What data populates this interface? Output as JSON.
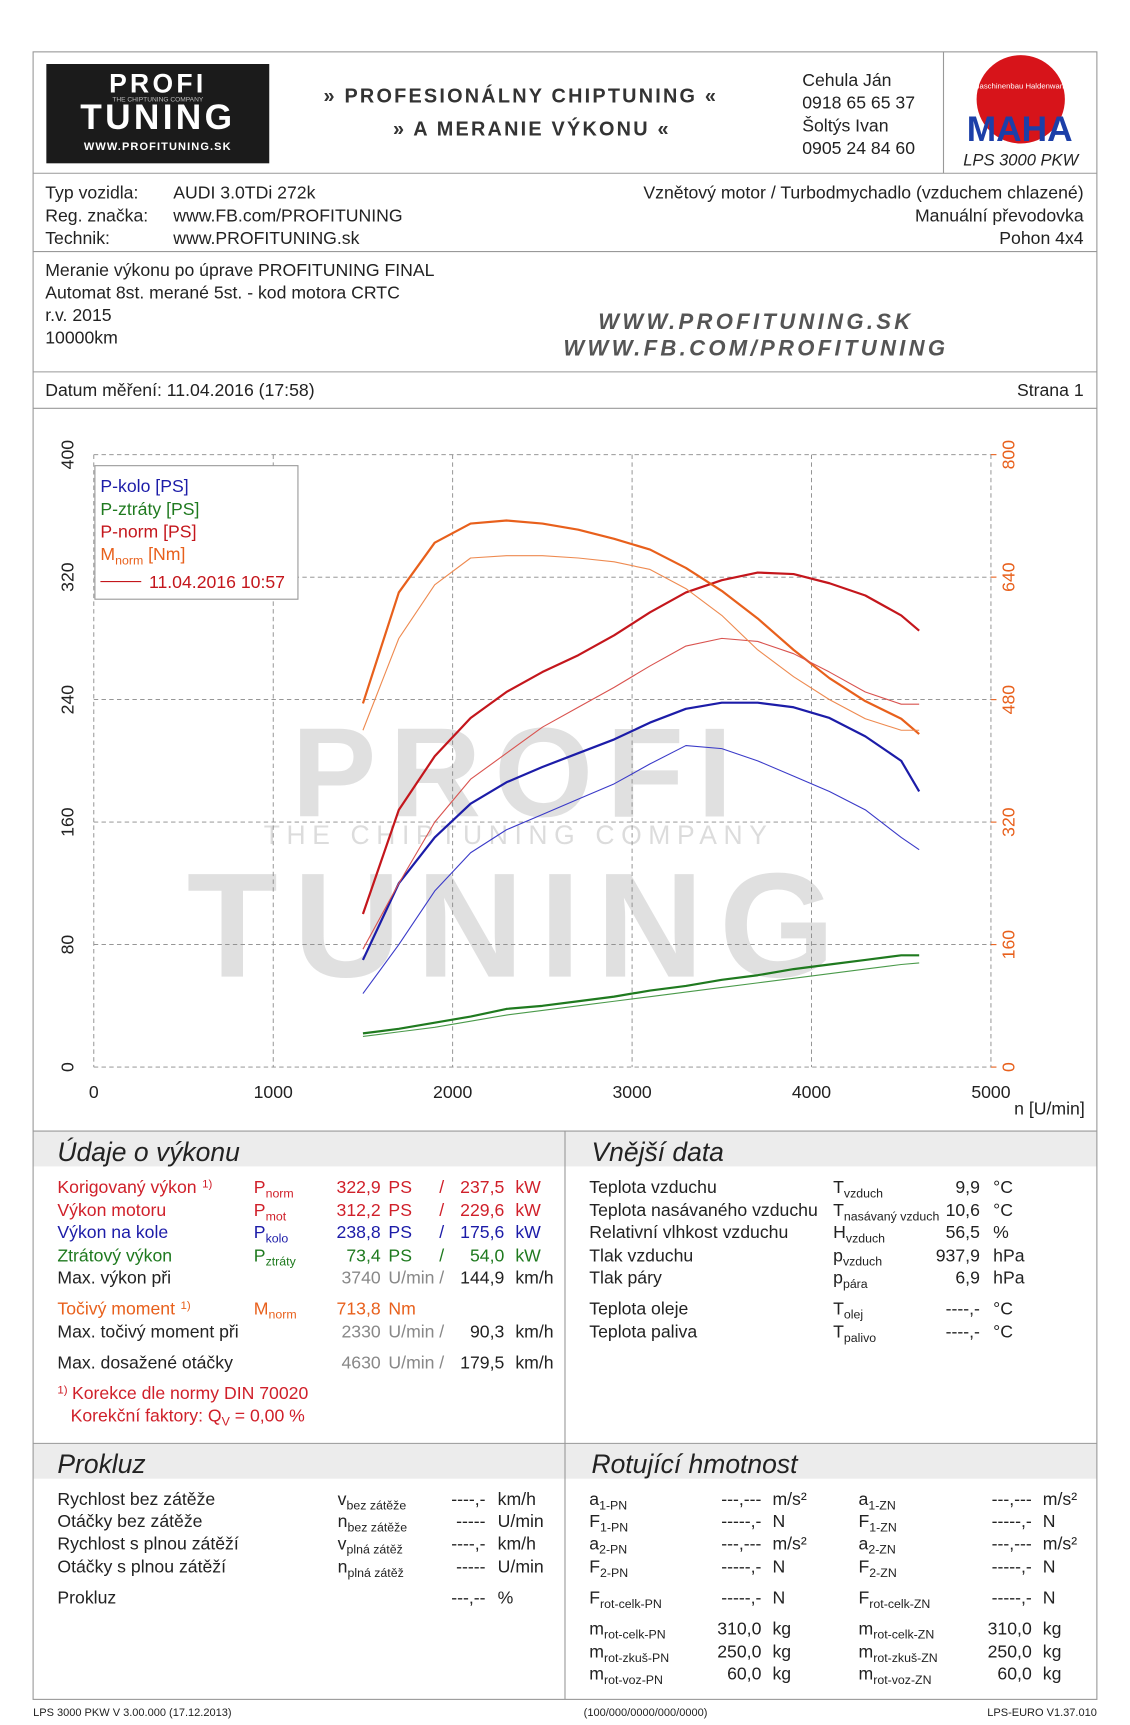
{
  "header": {
    "logo_top": "PROFI",
    "logo_tagline": "THE CHIPTUNING COMPANY",
    "logo_bottom": "TUNING",
    "logo_url": "WWW.PROFITUNING.SK",
    "title_1": "» PROFESIONÁLNY CHIPTUNING «",
    "title_2": "» A MERANIE VÝKONU «",
    "contacts": [
      "Cehula Ján",
      "0918 65 65 37",
      "Šoltýs Ivan",
      "0905 24 84 60"
    ],
    "maha_ring": "Maschinenbau Haldenwang",
    "maha": "MAHA",
    "dyno": "LPS 3000 PKW"
  },
  "vehicle": {
    "left": [
      [
        "Typ vozidla:",
        "AUDI 3.0TDi 272k"
      ],
      [
        "Reg. značka:",
        "www.FB.com/PROFITUNING"
      ],
      [
        "Technik:",
        "www.PROFITUNING.sk"
      ]
    ],
    "right": [
      "Vznětový motor / Turbodmychadlo (vzduchem chlazené)",
      "Manuální převodovka",
      "Pohon 4x4"
    ]
  },
  "notes": {
    "lines": [
      "Meranie výkonu po úprave PROFITUNING FINAL",
      "Automat 8st. merané 5st. - kod motora CRTC",
      "r.v. 2015",
      "10000km"
    ],
    "urls": [
      "WWW.PROFITUNING.SK",
      "WWW.FB.COM/PROFITUNING"
    ]
  },
  "date_row": {
    "date": "Datum měření: 11.04.2016 (17:58)",
    "page": "Strana 1"
  },
  "chart_data": {
    "type": "line",
    "watermark": {
      "top": "PROFI",
      "middle": "THE CHIPTUNING COMPANY",
      "bottom": "TUNING"
    },
    "x_label": "n [U/min]",
    "x": [
      1500,
      1700,
      1900,
      2100,
      2300,
      2500,
      2700,
      2900,
      3100,
      3300,
      3500,
      3700,
      3900,
      4100,
      4300,
      4500,
      4600
    ],
    "xlim": [
      0,
      5000
    ],
    "xticks": [
      0,
      1000,
      2000,
      3000,
      4000,
      5000
    ],
    "ylim": [
      0,
      400
    ],
    "yticks": [
      0,
      80,
      160,
      240,
      320,
      400
    ],
    "y2lim": [
      0,
      800
    ],
    "y2ticks": [
      0,
      160,
      320,
      480,
      640,
      800
    ],
    "y2_color": "#e8601c",
    "grid": true,
    "legend_run": "11.04.2016 10:57",
    "legend_run_color": "#c4161c",
    "series": [
      {
        "name": "P-kolo [PS]",
        "color": "#1c1ca8",
        "line_width": 2,
        "values": [
          70,
          120,
          150,
          172,
          186,
          196,
          205,
          214,
          225,
          234,
          238,
          238,
          235,
          228,
          216,
          200,
          180
        ]
      },
      {
        "name": "P-ztráty [PS]",
        "color": "#1f7a1f",
        "line_width": 2,
        "values": [
          22,
          25,
          29,
          33,
          38,
          40,
          43,
          46,
          50,
          53,
          57,
          60,
          64,
          67,
          70,
          73,
          73
        ]
      },
      {
        "name": "P-norm [PS]",
        "color": "#c4161c",
        "line_width": 2,
        "values": [
          100,
          168,
          203,
          228,
          245,
          258,
          269,
          282,
          297,
          310,
          318,
          323,
          322,
          316,
          308,
          295,
          285
        ]
      },
      {
        "name": "M",
        "name_sub": "norm",
        "name_unit": " [Nm]",
        "color": "#e8601c",
        "line_width": 2,
        "axis": "y2",
        "values": [
          475,
          620,
          685,
          710,
          714,
          710,
          702,
          690,
          676,
          652,
          622,
          586,
          545,
          508,
          478,
          455,
          435
        ]
      },
      {
        "color": "#3a3ac8",
        "line_width": 1,
        "values": [
          48,
          80,
          115,
          140,
          155,
          165,
          175,
          185,
          198,
          210,
          208,
          200,
          190,
          180,
          168,
          150,
          142
        ]
      },
      {
        "color": "#4a9a4a",
        "line_width": 1,
        "values": [
          20,
          23,
          26,
          30,
          34,
          37,
          40,
          43,
          46,
          49,
          52,
          55,
          58,
          61,
          64,
          67,
          68
        ]
      },
      {
        "color": "#d9534f",
        "line_width": 1,
        "values": [
          77,
          120,
          160,
          188,
          205,
          222,
          235,
          248,
          262,
          275,
          280,
          278,
          270,
          258,
          245,
          237,
          237
        ]
      },
      {
        "color": "#ee8a50",
        "line_width": 1,
        "axis": "y2",
        "values": [
          440,
          560,
          630,
          665,
          668,
          668,
          665,
          660,
          650,
          625,
          590,
          545,
          510,
          480,
          455,
          440,
          440
        ]
      }
    ]
  },
  "performance": {
    "title": "Údaje o výkonu",
    "rows": [
      {
        "label": "Korigovaný výkon",
        "note": "1)",
        "symbol": "P",
        "sub": "norm",
        "v1": "322,9",
        "u1": "PS",
        "sep": "/",
        "v2": "237,5",
        "u2": "kW",
        "color": "#d0202a",
        "value_color": "#d0202a"
      },
      {
        "label": "Výkon motoru",
        "symbol": "P",
        "sub": "mot",
        "v1": "312,2",
        "u1": "PS",
        "sep": "/",
        "v2": "229,6",
        "u2": "kW",
        "color": "#d0202a",
        "value_color": "#d0202a"
      },
      {
        "label": "Výkon na kole",
        "symbol": "P",
        "sub": "kolo",
        "v1": "238,8",
        "u1": "PS",
        "sep": "/",
        "v2": "175,6",
        "u2": "kW",
        "color": "#1c1ca8",
        "value_color": "#1c1ca8"
      },
      {
        "label": "Ztrátový výkon",
        "symbol": "P",
        "sub": "ztráty",
        "v1": "73,4",
        "u1": "PS",
        "sep": "/",
        "v2": "54,0",
        "u2": "kW",
        "color": "#1f7a1f",
        "value_color": "#1f7a1f"
      },
      {
        "label": "Max. výkon při",
        "v1": "3740",
        "u1": "U/min",
        "sep": "/",
        "v2": "144,9",
        "u2": "km/h",
        "color": "#222222",
        "value_color": "#888888"
      },
      {
        "label": "Točivý moment",
        "note": "1)",
        "symbol": "M",
        "sub": "norm",
        "v1": "713,8",
        "u1": "Nm",
        "color": "#e8601c",
        "value_color": "#e8601c"
      },
      {
        "label": "Max. točivý moment při",
        "v1": "2330",
        "u1": "U/min",
        "sep": "/",
        "v2": "90,3",
        "u2": "km/h",
        "color": "#222222",
        "value_color": "#888888"
      },
      {
        "label": "Max. dosažené otáčky",
        "v1": "4630",
        "u1": "U/min",
        "sep": "/",
        "v2": "179,5",
        "u2": "km/h",
        "color": "#222222",
        "value_color": "#888888"
      }
    ],
    "footnote": {
      "mark": "1)",
      "text": "Korekce dle normy DIN 70020",
      "factor_label": "Korekční faktory: Q",
      "factor_sub": "V",
      "factor_eq": " = ",
      "factor_value": "0,00 %",
      "color": "#d0202a"
    }
  },
  "external": {
    "title": "Vnější data",
    "rows": [
      {
        "label": "Teplota vzduchu",
        "symbol": "T",
        "sub": "vzduch",
        "value": "9,9",
        "unit": "°C"
      },
      {
        "label": "Teplota nasávaného vzduchu",
        "symbol": "T",
        "sub": "nasávaný vzduch",
        "value": "10,6",
        "unit": "°C"
      },
      {
        "label": "Relativní vlhkost vzduchu",
        "symbol": "H",
        "sub": "vzduch",
        "value": "56,5",
        "unit": "%"
      },
      {
        "label": "Tlak vzduchu",
        "symbol": "p",
        "sub": "vzduch",
        "value": "937,9",
        "unit": "hPa"
      },
      {
        "label": "Tlak páry",
        "symbol": "p",
        "sub": "pára",
        "value": "6,9",
        "unit": "hPa"
      },
      {
        "label": "Teplota oleje",
        "symbol": "T",
        "sub": "olej",
        "value": "----,-",
        "unit": "°C"
      },
      {
        "label": "Teplota paliva",
        "symbol": "T",
        "sub": "palivo",
        "value": "----,-",
        "unit": "°C"
      }
    ]
  },
  "slip": {
    "title": "Prokluz",
    "rows": [
      {
        "label": "Rychlost bez zátěže",
        "symbol": "v",
        "sub": "bez zátěže",
        "value": "----,-",
        "unit": "km/h"
      },
      {
        "label": "Otáčky bez zátěže",
        "symbol": "n",
        "sub": "bez zátěže",
        "value": "-----",
        "unit": "U/min"
      },
      {
        "label": "Rychlost s plnou zátěží",
        "symbol": "v",
        "sub": "plná zátěž",
        "value": "----,-",
        "unit": "km/h"
      },
      {
        "label": "Otáčky s plnou zátěží",
        "symbol": "n",
        "sub": "plná zátěž",
        "value": "-----",
        "unit": "U/min"
      },
      {
        "label": "Prokluz",
        "value": "---,--",
        "unit": "%"
      }
    ]
  },
  "rotating": {
    "title": "Rotující hmotnost",
    "columns": [
      [
        {
          "symbol": "a",
          "sub": "1-PN",
          "value": "---,---",
          "unit": "m/s²"
        },
        {
          "symbol": "F",
          "sub": "1-PN",
          "value": "-----,-",
          "unit": "N"
        },
        {
          "symbol": "a",
          "sub": "2-PN",
          "value": "---,---",
          "unit": "m/s²"
        },
        {
          "symbol": "F",
          "sub": "2-PN",
          "value": "-----,-",
          "unit": "N"
        },
        {
          "symbol": "F",
          "sub": "rot-celk-PN",
          "value": "-----,-",
          "unit": "N"
        },
        {
          "symbol": "m",
          "sub": "rot-celk-PN",
          "value": "310,0",
          "unit": "kg"
        },
        {
          "symbol": "m",
          "sub": "rot-zkuš-PN",
          "value": "250,0",
          "unit": "kg"
        },
        {
          "symbol": "m",
          "sub": "rot-voz-PN",
          "value": "60,0",
          "unit": "kg"
        }
      ],
      [
        {
          "symbol": "a",
          "sub": "1-ZN",
          "value": "---,---",
          "unit": "m/s²"
        },
        {
          "symbol": "F",
          "sub": "1-ZN",
          "value": "-----,-",
          "unit": "N"
        },
        {
          "symbol": "a",
          "sub": "2-ZN",
          "value": "---,---",
          "unit": "m/s²"
        },
        {
          "symbol": "F",
          "sub": "2-ZN",
          "value": "-----,-",
          "unit": "N"
        },
        {
          "symbol": "F",
          "sub": "rot-celk-ZN",
          "value": "-----,-",
          "unit": "N"
        },
        {
          "symbol": "m",
          "sub": "rot-celk-ZN",
          "value": "310,0",
          "unit": "kg"
        },
        {
          "symbol": "m",
          "sub": "rot-zkuš-ZN",
          "value": "250,0",
          "unit": "kg"
        },
        {
          "symbol": "m",
          "sub": "rot-voz-ZN",
          "value": "60,0",
          "unit": "kg"
        }
      ]
    ]
  },
  "footer": {
    "left": "LPS 3000 PKW V 3.00.000 (17.12.2013)",
    "center": "(100/000/0000/000/0000)",
    "right": "LPS-EURO V1.37.010"
  }
}
